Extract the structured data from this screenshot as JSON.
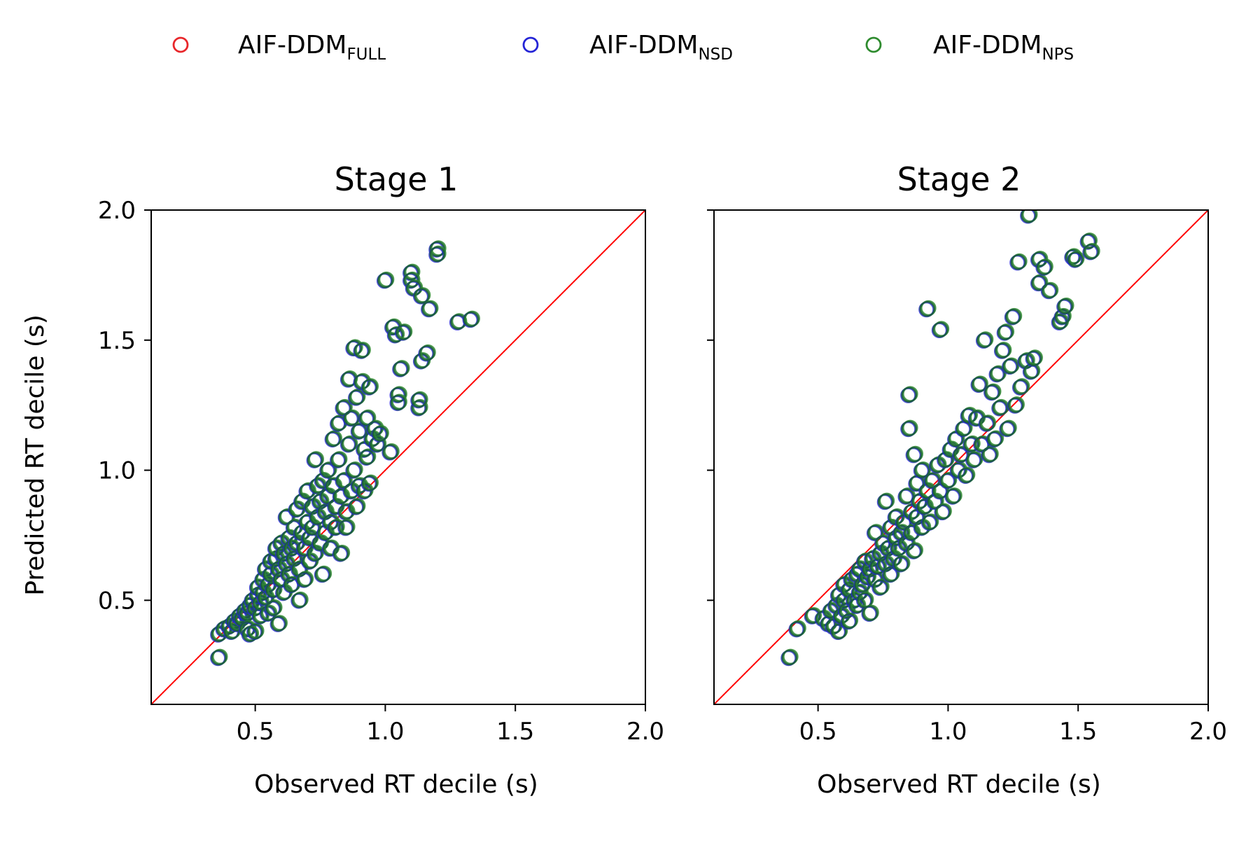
{
  "legend": {
    "entries": [
      {
        "main": "AIF-DDM",
        "sub": "FULL",
        "color": "#e8262a"
      },
      {
        "main": "AIF-DDM",
        "sub": "NSD",
        "color": "#2424d6"
      },
      {
        "main": "AIF-DDM",
        "sub": "NPS",
        "color": "#2e8b2e"
      }
    ]
  },
  "colors": {
    "identity_line": "#ff0000",
    "dark_overlap": "#1b5e3a"
  },
  "chart_data": [
    {
      "type": "scatter",
      "title": "Stage 1",
      "xlabel": "Observed RT decile (s)",
      "ylabel": "Predicted RT decile (s)",
      "xlim": [
        0.1,
        2.0
      ],
      "ylim": [
        0.1,
        2.0
      ],
      "xticks": [
        "0.5",
        "1.0",
        "1.5",
        "2.0"
      ],
      "yticks": [
        "0.5",
        "1.0",
        "1.5",
        "2.0"
      ],
      "identity_line": true,
      "points": [
        [
          0.36,
          0.28
        ],
        [
          0.36,
          0.37
        ],
        [
          0.38,
          0.39
        ],
        [
          0.4,
          0.4
        ],
        [
          0.41,
          0.38
        ],
        [
          0.42,
          0.42
        ],
        [
          0.43,
          0.41
        ],
        [
          0.44,
          0.44
        ],
        [
          0.45,
          0.43
        ],
        [
          0.46,
          0.46
        ],
        [
          0.47,
          0.45
        ],
        [
          0.47,
          0.39
        ],
        [
          0.48,
          0.37
        ],
        [
          0.48,
          0.48
        ],
        [
          0.49,
          0.5
        ],
        [
          0.5,
          0.47
        ],
        [
          0.5,
          0.38
        ],
        [
          0.51,
          0.52
        ],
        [
          0.51,
          0.55
        ],
        [
          0.52,
          0.49
        ],
        [
          0.52,
          0.44
        ],
        [
          0.53,
          0.53
        ],
        [
          0.53,
          0.58
        ],
        [
          0.54,
          0.62
        ],
        [
          0.54,
          0.51
        ],
        [
          0.55,
          0.56
        ],
        [
          0.55,
          0.45
        ],
        [
          0.56,
          0.6
        ],
        [
          0.56,
          0.65
        ],
        [
          0.57,
          0.54
        ],
        [
          0.57,
          0.47
        ],
        [
          0.58,
          0.66
        ],
        [
          0.58,
          0.7
        ],
        [
          0.59,
          0.62
        ],
        [
          0.59,
          0.41
        ],
        [
          0.6,
          0.58
        ],
        [
          0.6,
          0.72
        ],
        [
          0.61,
          0.68
        ],
        [
          0.61,
          0.53
        ],
        [
          0.62,
          0.64
        ],
        [
          0.62,
          0.82
        ],
        [
          0.63,
          0.74
        ],
        [
          0.63,
          0.6
        ],
        [
          0.64,
          0.7
        ],
        [
          0.64,
          0.56
        ],
        [
          0.65,
          0.78
        ],
        [
          0.65,
          0.66
        ],
        [
          0.66,
          0.85
        ],
        [
          0.66,
          0.72
        ],
        [
          0.67,
          0.62
        ],
        [
          0.67,
          0.5
        ],
        [
          0.68,
          0.76
        ],
        [
          0.68,
          0.88
        ],
        [
          0.69,
          0.7
        ],
        [
          0.69,
          0.58
        ],
        [
          0.7,
          0.8
        ],
        [
          0.7,
          0.92
        ],
        [
          0.71,
          0.74
        ],
        [
          0.71,
          0.65
        ],
        [
          0.72,
          0.86
        ],
        [
          0.72,
          0.78
        ],
        [
          0.73,
          0.68
        ],
        [
          0.73,
          1.04
        ],
        [
          0.74,
          0.94
        ],
        [
          0.74,
          0.82
        ],
        [
          0.75,
          0.72
        ],
        [
          0.75,
          0.88
        ],
        [
          0.76,
          0.6
        ],
        [
          0.76,
          0.96
        ],
        [
          0.77,
          0.84
        ],
        [
          0.77,
          0.76
        ],
        [
          0.78,
          1.0
        ],
        [
          0.78,
          0.9
        ],
        [
          0.79,
          0.8
        ],
        [
          0.79,
          0.7
        ],
        [
          0.8,
          1.12
        ],
        [
          0.8,
          0.94
        ],
        [
          0.81,
          0.86
        ],
        [
          0.81,
          0.78
        ],
        [
          0.82,
          1.18
        ],
        [
          0.82,
          1.04
        ],
        [
          0.83,
          0.9
        ],
        [
          0.83,
          0.68
        ],
        [
          0.84,
          1.24
        ],
        [
          0.84,
          0.96
        ],
        [
          0.85,
          0.84
        ],
        [
          0.85,
          0.78
        ],
        [
          0.86,
          1.35
        ],
        [
          0.86,
          1.1
        ],
        [
          0.87,
          0.92
        ],
        [
          0.87,
          1.2
        ],
        [
          0.88,
          1.47
        ],
        [
          0.88,
          1.0
        ],
        [
          0.89,
          0.86
        ],
        [
          0.89,
          1.28
        ],
        [
          0.9,
          1.15
        ],
        [
          0.9,
          0.94
        ],
        [
          0.91,
          1.46
        ],
        [
          0.91,
          1.34
        ],
        [
          0.92,
          1.08
        ],
        [
          0.92,
          0.92
        ],
        [
          0.93,
          1.2
        ],
        [
          0.93,
          1.05
        ],
        [
          0.94,
          1.32
        ],
        [
          0.94,
          0.95
        ],
        [
          0.95,
          1.12
        ],
        [
          0.96,
          1.16
        ],
        [
          0.97,
          1.1
        ],
        [
          0.98,
          1.14
        ],
        [
          1.0,
          1.73
        ],
        [
          1.02,
          1.07
        ],
        [
          1.03,
          1.55
        ],
        [
          1.04,
          1.52
        ],
        [
          1.05,
          1.29
        ],
        [
          1.05,
          1.26
        ],
        [
          1.06,
          1.39
        ],
        [
          1.07,
          1.53
        ],
        [
          1.1,
          1.76
        ],
        [
          1.1,
          1.73
        ],
        [
          1.11,
          1.7
        ],
        [
          1.13,
          1.24
        ],
        [
          1.13,
          1.27
        ],
        [
          1.14,
          1.42
        ],
        [
          1.14,
          1.67
        ],
        [
          1.16,
          1.45
        ],
        [
          1.17,
          1.62
        ],
        [
          1.2,
          1.85
        ],
        [
          1.2,
          1.83
        ],
        [
          1.28,
          1.57
        ],
        [
          1.33,
          1.58
        ]
      ]
    },
    {
      "type": "scatter",
      "title": "Stage 2",
      "xlabel": "Observed RT decile (s)",
      "ylabel": "",
      "xlim": [
        0.1,
        2.0
      ],
      "ylim": [
        0.1,
        2.0
      ],
      "xticks": [
        "0.5",
        "1.0",
        "1.5",
        "2.0"
      ],
      "yticks": [
        "",
        "",
        "",
        ""
      ],
      "identity_line": true,
      "points": [
        [
          0.39,
          0.28
        ],
        [
          0.42,
          0.39
        ],
        [
          0.48,
          0.44
        ],
        [
          0.52,
          0.43
        ],
        [
          0.54,
          0.41
        ],
        [
          0.55,
          0.46
        ],
        [
          0.56,
          0.4
        ],
        [
          0.57,
          0.48
        ],
        [
          0.58,
          0.38
        ],
        [
          0.58,
          0.52
        ],
        [
          0.59,
          0.44
        ],
        [
          0.6,
          0.5
        ],
        [
          0.6,
          0.56
        ],
        [
          0.61,
          0.46
        ],
        [
          0.62,
          0.54
        ],
        [
          0.62,
          0.42
        ],
        [
          0.63,
          0.58
        ],
        [
          0.64,
          0.5
        ],
        [
          0.65,
          0.6
        ],
        [
          0.65,
          0.48
        ],
        [
          0.66,
          0.62
        ],
        [
          0.66,
          0.53
        ],
        [
          0.67,
          0.56
        ],
        [
          0.68,
          0.65
        ],
        [
          0.68,
          0.5
        ],
        [
          0.69,
          0.59
        ],
        [
          0.7,
          0.62
        ],
        [
          0.7,
          0.45
        ],
        [
          0.71,
          0.66
        ],
        [
          0.72,
          0.58
        ],
        [
          0.72,
          0.76
        ],
        [
          0.73,
          0.63
        ],
        [
          0.74,
          0.68
        ],
        [
          0.74,
          0.55
        ],
        [
          0.75,
          0.72
        ],
        [
          0.76,
          0.64
        ],
        [
          0.76,
          0.88
        ],
        [
          0.77,
          0.7
        ],
        [
          0.78,
          0.6
        ],
        [
          0.78,
          0.78
        ],
        [
          0.79,
          0.66
        ],
        [
          0.8,
          0.74
        ],
        [
          0.8,
          0.82
        ],
        [
          0.81,
          0.7
        ],
        [
          0.82,
          0.76
        ],
        [
          0.82,
          0.64
        ],
        [
          0.83,
          0.8
        ],
        [
          0.84,
          0.72
        ],
        [
          0.84,
          0.9
        ],
        [
          0.85,
          1.29
        ],
        [
          0.85,
          1.16
        ],
        [
          0.86,
          0.84
        ],
        [
          0.86,
          0.76
        ],
        [
          0.87,
          1.06
        ],
        [
          0.87,
          0.69
        ],
        [
          0.88,
          0.95
        ],
        [
          0.88,
          0.82
        ],
        [
          0.89,
          0.88
        ],
        [
          0.9,
          0.78
        ],
        [
          0.9,
          1.0
        ],
        [
          0.91,
          0.86
        ],
        [
          0.92,
          1.62
        ],
        [
          0.92,
          0.92
        ],
        [
          0.93,
          0.8
        ],
        [
          0.94,
          0.96
        ],
        [
          0.95,
          0.88
        ],
        [
          0.96,
          1.02
        ],
        [
          0.97,
          1.54
        ],
        [
          0.97,
          0.92
        ],
        [
          0.98,
          0.84
        ],
        [
          0.99,
          1.04
        ],
        [
          1.0,
          0.96
        ],
        [
          1.01,
          1.08
        ],
        [
          1.02,
          0.9
        ],
        [
          1.03,
          1.12
        ],
        [
          1.04,
          1.0
        ],
        [
          1.05,
          1.06
        ],
        [
          1.06,
          1.16
        ],
        [
          1.07,
          0.98
        ],
        [
          1.08,
          1.21
        ],
        [
          1.09,
          1.1
        ],
        [
          1.1,
          1.04
        ],
        [
          1.11,
          1.2
        ],
        [
          1.12,
          1.33
        ],
        [
          1.13,
          1.1
        ],
        [
          1.14,
          1.5
        ],
        [
          1.15,
          1.18
        ],
        [
          1.16,
          1.06
        ],
        [
          1.17,
          1.3
        ],
        [
          1.18,
          1.12
        ],
        [
          1.19,
          1.37
        ],
        [
          1.2,
          1.24
        ],
        [
          1.21,
          1.46
        ],
        [
          1.22,
          1.53
        ],
        [
          1.23,
          1.16
        ],
        [
          1.24,
          1.4
        ],
        [
          1.25,
          1.59
        ],
        [
          1.26,
          1.25
        ],
        [
          1.27,
          1.8
        ],
        [
          1.28,
          1.32
        ],
        [
          1.3,
          1.42
        ],
        [
          1.31,
          1.98
        ],
        [
          1.32,
          1.38
        ],
        [
          1.33,
          1.43
        ],
        [
          1.35,
          1.81
        ],
        [
          1.35,
          1.72
        ],
        [
          1.37,
          1.78
        ],
        [
          1.39,
          1.69
        ],
        [
          1.43,
          1.57
        ],
        [
          1.44,
          1.59
        ],
        [
          1.45,
          1.63
        ],
        [
          1.48,
          1.82
        ],
        [
          1.49,
          1.81
        ],
        [
          1.54,
          1.88
        ],
        [
          1.55,
          1.84
        ]
      ]
    }
  ]
}
